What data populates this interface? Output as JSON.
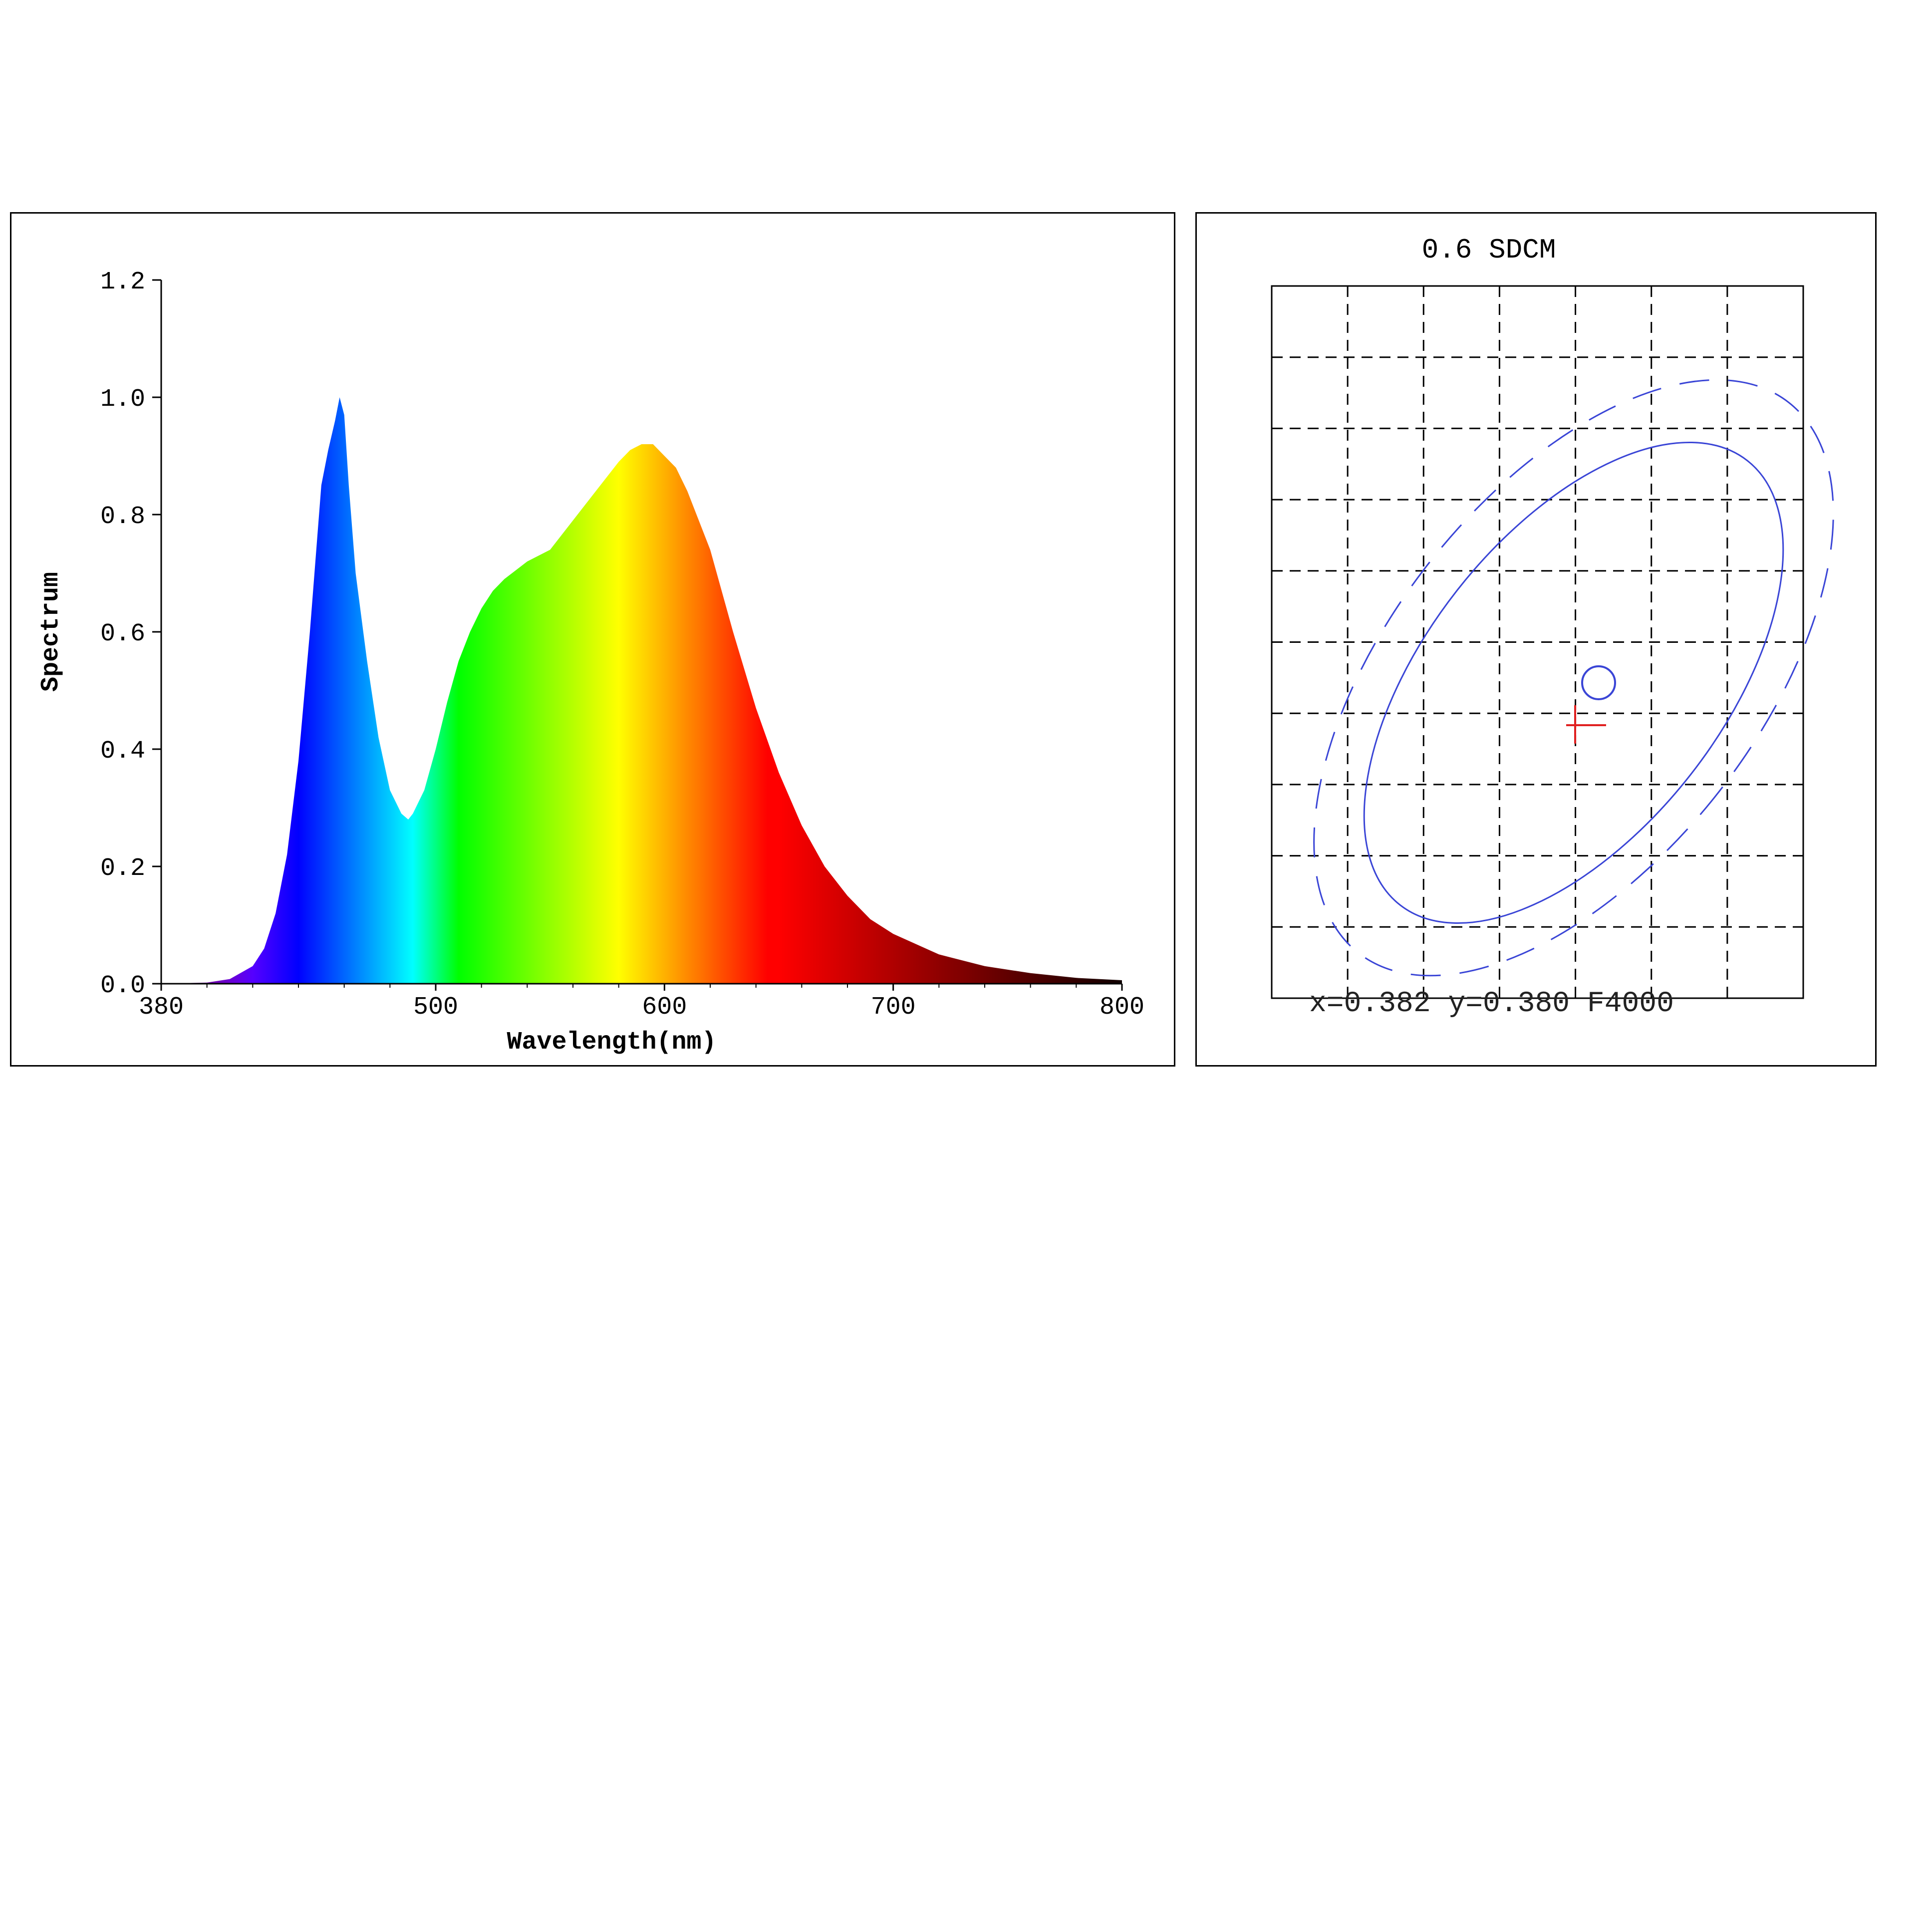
{
  "colors": {
    "ellipse": "#3a45d6",
    "marker_cross": "#e02020",
    "marker_circle": "#3a45d6",
    "grid": "#000000"
  },
  "chart_data": [
    {
      "type": "area",
      "xlabel": "Wavelength(nm)",
      "ylabel": "Spectrum",
      "xlim": [
        380,
        800
      ],
      "ylim": [
        0,
        1.2
      ],
      "xticks": [
        "380",
        "500",
        "600",
        "700",
        "800"
      ],
      "xtick_values": [
        380,
        500,
        600,
        700,
        800
      ],
      "yticks": [
        "0.0",
        "0.2",
        "0.4",
        "0.6",
        "0.8",
        "1.0",
        "1.2"
      ],
      "ytick_values": [
        0.0,
        0.2,
        0.4,
        0.6,
        0.8,
        1.0,
        1.2
      ],
      "fill": "visible-spectrum gradient by wavelength",
      "x": [
        380,
        400,
        410,
        420,
        425,
        430,
        435,
        440,
        445,
        450,
        453,
        456,
        458,
        460,
        462,
        465,
        470,
        475,
        480,
        485,
        488,
        490,
        495,
        500,
        505,
        510,
        515,
        520,
        525,
        530,
        540,
        550,
        560,
        570,
        580,
        585,
        590,
        595,
        600,
        605,
        610,
        620,
        630,
        640,
        650,
        660,
        670,
        680,
        690,
        700,
        720,
        740,
        760,
        780,
        800
      ],
      "y": [
        0.0,
        0.002,
        0.008,
        0.03,
        0.06,
        0.12,
        0.22,
        0.38,
        0.6,
        0.85,
        0.91,
        0.96,
        1.0,
        0.97,
        0.85,
        0.7,
        0.55,
        0.42,
        0.33,
        0.29,
        0.28,
        0.29,
        0.33,
        0.4,
        0.48,
        0.55,
        0.6,
        0.64,
        0.67,
        0.69,
        0.72,
        0.74,
        0.79,
        0.84,
        0.89,
        0.91,
        0.92,
        0.92,
        0.9,
        0.88,
        0.84,
        0.74,
        0.6,
        0.47,
        0.36,
        0.27,
        0.2,
        0.15,
        0.11,
        0.085,
        0.05,
        0.03,
        0.018,
        0.01,
        0.006
      ]
    },
    {
      "type": "scatter",
      "title": "0.6 SDCM",
      "footer": "x=0.382 y=0.380 F4000",
      "grid": true,
      "grid_columns": 7,
      "grid_rows": 10,
      "reference_point": {
        "x": 0.3818,
        "y": 0.3797
      },
      "measured_point": {
        "x": 0.382,
        "y": 0.38
      },
      "ellipses": [
        "solid inner step",
        "dashed outer step"
      ]
    }
  ]
}
